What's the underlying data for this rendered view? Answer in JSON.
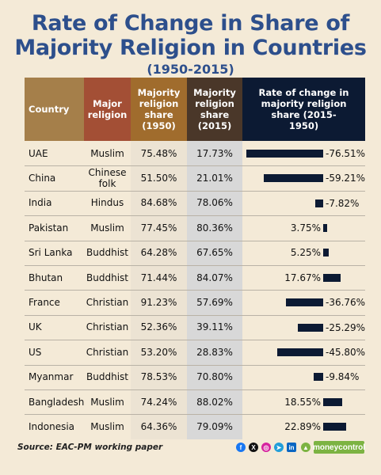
{
  "header": {
    "title_line1": "Rate of Change in Share of",
    "title_line2": "Majority Religion in Countries",
    "subtitle": "(1950-2015)"
  },
  "columns": {
    "country": "Country",
    "religion": "Major religion",
    "share1950": "Majority religion share (1950)",
    "share2015": "Majority religion share (2015)",
    "rate": "Rate of change in majority religion share (2015-1950)"
  },
  "colors": {
    "background": "#f4ead7",
    "header_country": "#a57f4a",
    "header_religion": "#a34f35",
    "header_1950": "#a06c2d",
    "header_2015": "#4a3729",
    "header_rate": "#0c1a33",
    "bar": "#0c1a33",
    "title": "#2d4f8c"
  },
  "chart_data": {
    "type": "bar",
    "orientation": "horizontal",
    "title": "Rate of Change in Share of Majority Religion in Countries",
    "subtitle": "(1950-2015)",
    "categories": [
      "UAE",
      "China",
      "India",
      "Pakistan",
      "Sri Lanka",
      "Bhutan",
      "France",
      "UK",
      "US",
      "Myanmar",
      "Bangladesh",
      "Indonesia"
    ],
    "religions": [
      "Muslim",
      "Chinese folk",
      "Hindus",
      "Muslim",
      "Buddhist",
      "Buddhist",
      "Christian",
      "Christian",
      "Christian",
      "Buddhist",
      "Muslim",
      "Muslim"
    ],
    "share_1950": [
      "75.48%",
      "51.50%",
      "84.68%",
      "77.45%",
      "64.28%",
      "71.44%",
      "91.23%",
      "52.36%",
      "53.20%",
      "78.53%",
      "74.24%",
      "64.36%"
    ],
    "share_2015": [
      "17.73%",
      "21.01%",
      "78.06%",
      "80.36%",
      "67.65%",
      "84.07%",
      "57.69%",
      "39.11%",
      "28.83%",
      "70.80%",
      "88.02%",
      "79.09%"
    ],
    "values": [
      -76.51,
      -59.21,
      -7.82,
      3.75,
      5.25,
      17.67,
      -36.76,
      -25.29,
      -45.8,
      -9.84,
      18.55,
      22.89
    ],
    "value_labels": [
      "-76.51%",
      "-59.21%",
      "-7.82%",
      "3.75%",
      "5.25%",
      "17.67%",
      "-36.76%",
      "-25.29%",
      "-45.80%",
      "-9.84%",
      "18.55%",
      "22.89%"
    ]
  },
  "footer": {
    "source": "Source: EAC-PM working paper",
    "brand": "moneycontrol",
    "social_icons": [
      "facebook-icon",
      "x-icon",
      "instagram-icon",
      "telegram-icon",
      "linkedin-icon"
    ]
  }
}
